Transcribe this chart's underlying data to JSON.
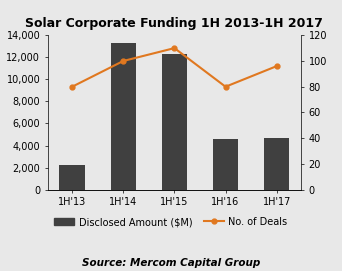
{
  "title": "Solar Corporate Funding 1H 2013-1H 2017",
  "categories": [
    "1H'13",
    "1H'14",
    "1H'15",
    "1H'16",
    "1H'17"
  ],
  "bar_values": [
    2200,
    13300,
    12300,
    4600,
    4700
  ],
  "line_values": [
    80,
    100,
    110,
    80,
    96
  ],
  "bar_color": "#404040",
  "line_color": "#e07820",
  "ylim_left": [
    0,
    14000
  ],
  "ylim_right": [
    0,
    120
  ],
  "yticks_left": [
    0,
    2000,
    4000,
    6000,
    8000,
    10000,
    12000,
    14000
  ],
  "yticks_right": [
    0,
    20,
    40,
    60,
    80,
    100,
    120
  ],
  "background_color": "#e8e8e8",
  "legend_bar_label": "Disclosed Amount ($M)",
  "legend_line_label": "No. of Deals",
  "source_text": "Source: Mercom Capital Group",
  "title_fontsize": 9,
  "axis_fontsize": 7,
  "legend_fontsize": 7,
  "source_fontsize": 7.5
}
